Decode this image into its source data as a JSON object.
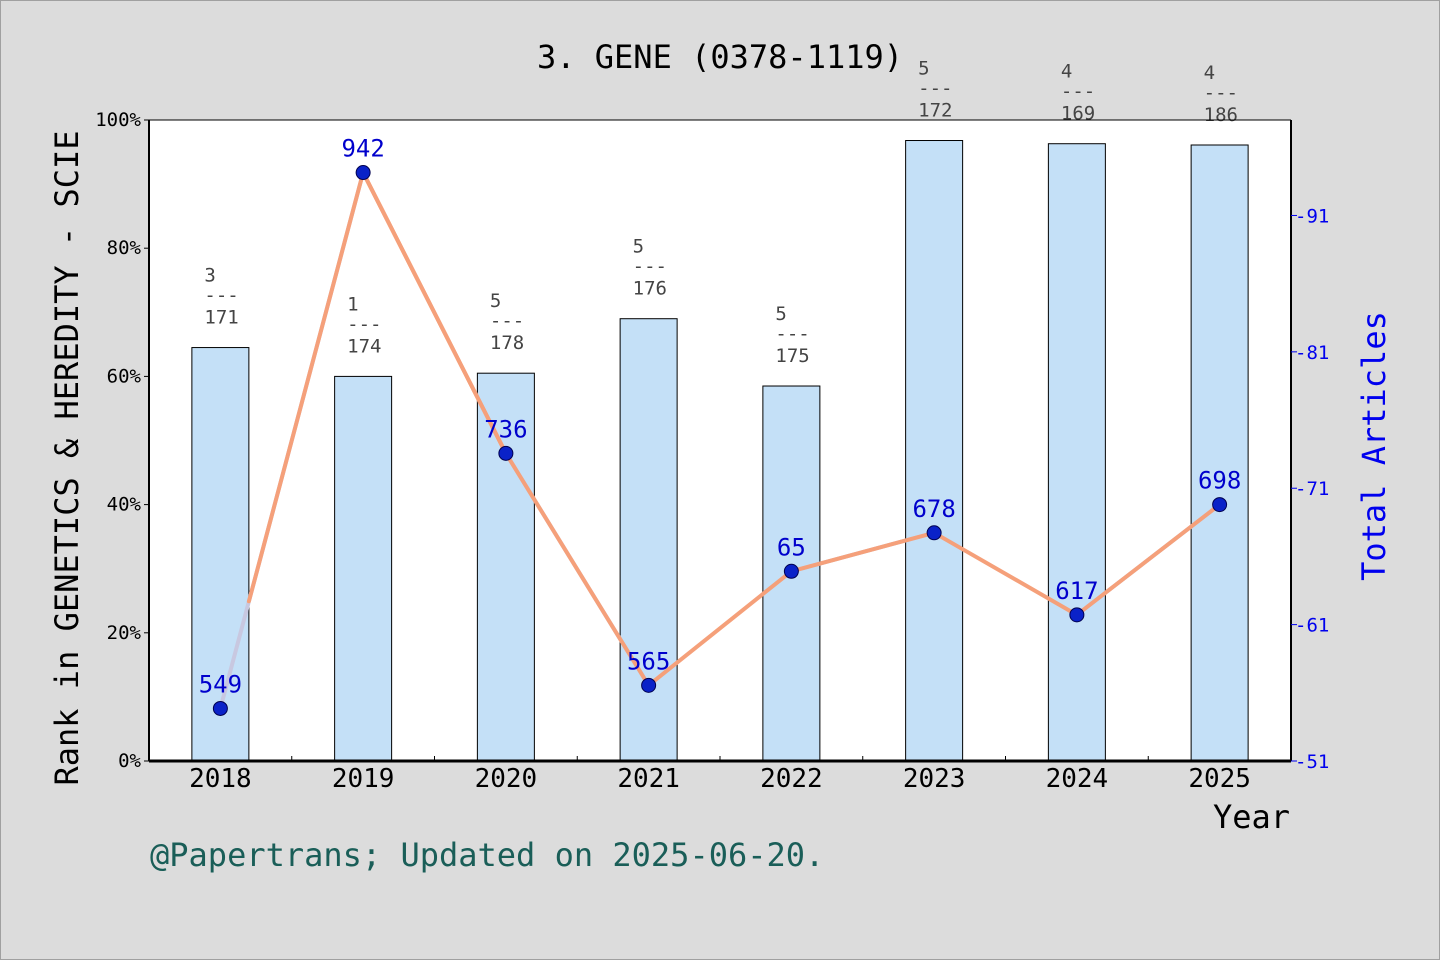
{
  "title": "3. GENE (0378-1119)",
  "credit": "@Papertrans; Updated on 2025-06-20.",
  "chart_data": {
    "type": "bar",
    "title": "3. GENE (0378-1119)",
    "xlabel": "Year",
    "ylabel": "Rank in GENETICS & HEREDITY - SCIE",
    "y2label": "Total Articles",
    "categories": [
      "2018",
      "2019",
      "2020",
      "2021",
      "2022",
      "2023",
      "2024",
      "2025"
    ],
    "ylim": [
      0,
      100
    ],
    "yticks": [
      "0%",
      "20%",
      "40%",
      "60%",
      "80%",
      "100%"
    ],
    "y2lim": [
      51,
      98
    ],
    "y2ticks": [
      51,
      61,
      71,
      81,
      91
    ],
    "bar_series": {
      "name": "Rank in GENETICS & HEREDITY - SCIE",
      "values": [
        64.5,
        60.0,
        60.5,
        69.0,
        58.5,
        96.8,
        96.3,
        96.1
      ],
      "rank_labels": [
        {
          "num": "3",
          "sep": "---",
          "den": "171"
        },
        {
          "num": "1",
          "sep": "---",
          "den": "174"
        },
        {
          "num": "5",
          "sep": "---",
          "den": "178"
        },
        {
          "num": "5",
          "sep": "---",
          "den": "176"
        },
        {
          "num": "5",
          "sep": "---",
          "den": "175"
        },
        {
          "num": "5",
          "sep": "---",
          "den": "172"
        },
        {
          "num": "4",
          "sep": "---",
          "den": "169"
        },
        {
          "num": "4",
          "sep": "---",
          "den": "186"
        }
      ]
    },
    "line_series": {
      "name": "Total Articles",
      "values": [
        549,
        942,
        736,
        565,
        65,
        678,
        617,
        698
      ],
      "labels": [
        "549",
        "942",
        "736",
        "565",
        "65",
        "678",
        "617",
        "698"
      ],
      "plotted_percent": [
        8.2,
        91.8,
        48.0,
        11.8,
        29.6,
        35.6,
        22.8,
        40.0
      ]
    },
    "colors": {
      "bar_fill": "#c4e0f7",
      "line_main": "#f5a07a",
      "line_alt": "#c8c8e0",
      "point": "#0a22c8",
      "right_axis": "#0000ee",
      "credit": "#1a5e58"
    },
    "grid": false,
    "legend": "none"
  }
}
